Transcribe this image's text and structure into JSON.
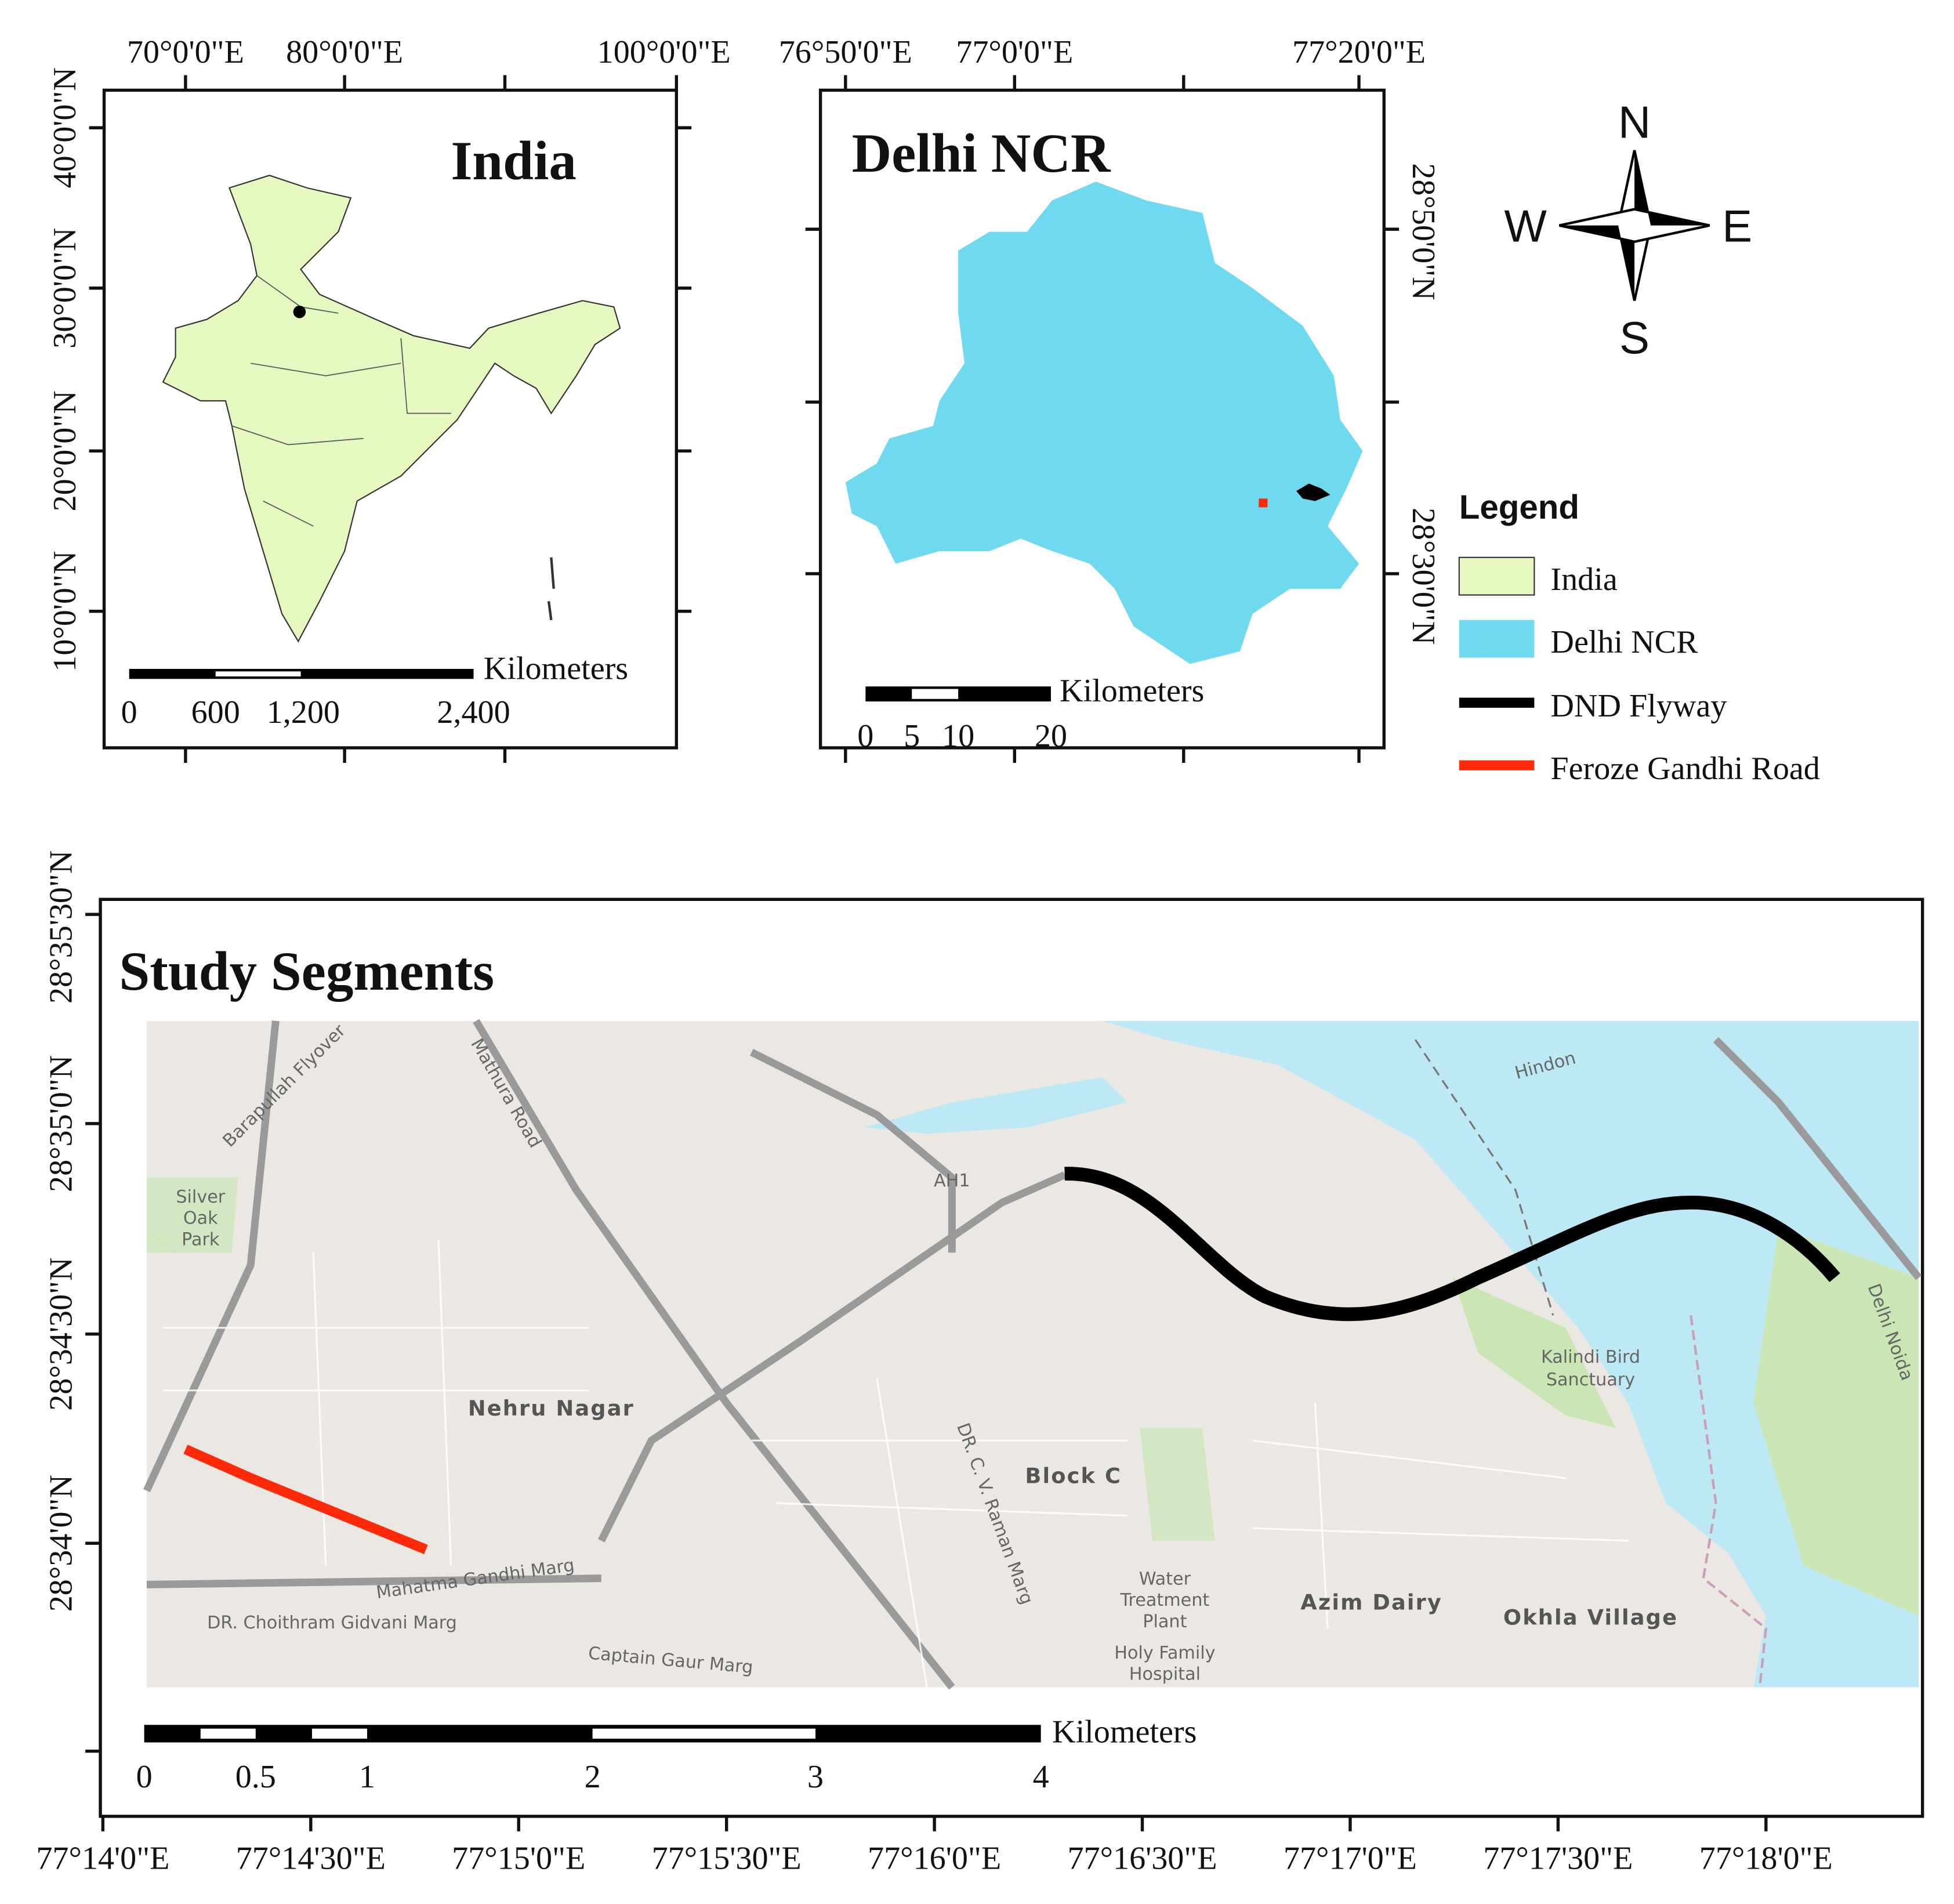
{
  "india": {
    "title": "India",
    "top_ticks": [
      "70°0'0\"E",
      "80°0'0\"E",
      "100°0'0\"E"
    ],
    "left_ticks": [
      "40°0'0\"N",
      "30°0'0\"N",
      "20°0'0\"N",
      "10°0'0\"N"
    ],
    "scale": {
      "unit": "Kilometers",
      "labels": [
        "0",
        "600",
        "1,200",
        "2,400"
      ]
    }
  },
  "delhi": {
    "title": "Delhi NCR",
    "top_ticks": [
      "76°50'0\"E",
      "77°0'0\"E",
      "77°20'0\"E"
    ],
    "right_ticks": [
      "28°50'0\"N",
      "28°30'0\"N"
    ],
    "scale": {
      "unit": "Kilometers",
      "labels": [
        "0",
        "5",
        "10",
        "20"
      ]
    }
  },
  "compass": {
    "n": "N",
    "e": "E",
    "s": "S",
    "w": "W"
  },
  "legend": {
    "title": "Legend",
    "items": [
      {
        "label": "India",
        "color": "#e6f7c0"
      },
      {
        "label": "Delhi NCR",
        "color": "#6fd9f0"
      },
      {
        "label": "DND Flyway",
        "color": "#000000"
      },
      {
        "label": "Feroze Gandhi Road",
        "color": "#ff2a0a"
      }
    ]
  },
  "study": {
    "title": "Study Segments",
    "left_ticks": [
      "28°35'30\"N",
      "28°35'0\"N",
      "28°34'30\"N",
      "28°34'0\"N"
    ],
    "bottom_ticks": [
      "77°14'0\"E",
      "77°14'30\"E",
      "77°15'0\"E",
      "77°15'30\"E",
      "77°16'0\"E",
      "77°16'30\"E",
      "77°17'0\"E",
      "77°17'30\"E",
      "77°18'0\"E"
    ],
    "scale": {
      "unit": "Kilometers",
      "labels": [
        "0",
        "0.5",
        "1",
        "2",
        "3",
        "4"
      ]
    },
    "places": [
      "Nehru Nagar",
      "Block C",
      "Azim Dairy",
      "Okhla Village",
      "Kalindi Bird",
      "Sanctuary",
      "Water",
      "Treatment",
      "Plant",
      "Holy Family",
      "Hospital",
      "Mahatma Gandhi Marg",
      "Captain Gaur Marg",
      "DR. Choithram Gidvani Marg",
      "Mathura Road",
      "Barapullah Flyover",
      "Hindon",
      "AH1",
      "Delhi Noida",
      "Silver",
      "Oak",
      "Park",
      "DR. C. V. Raman Marg"
    ]
  }
}
